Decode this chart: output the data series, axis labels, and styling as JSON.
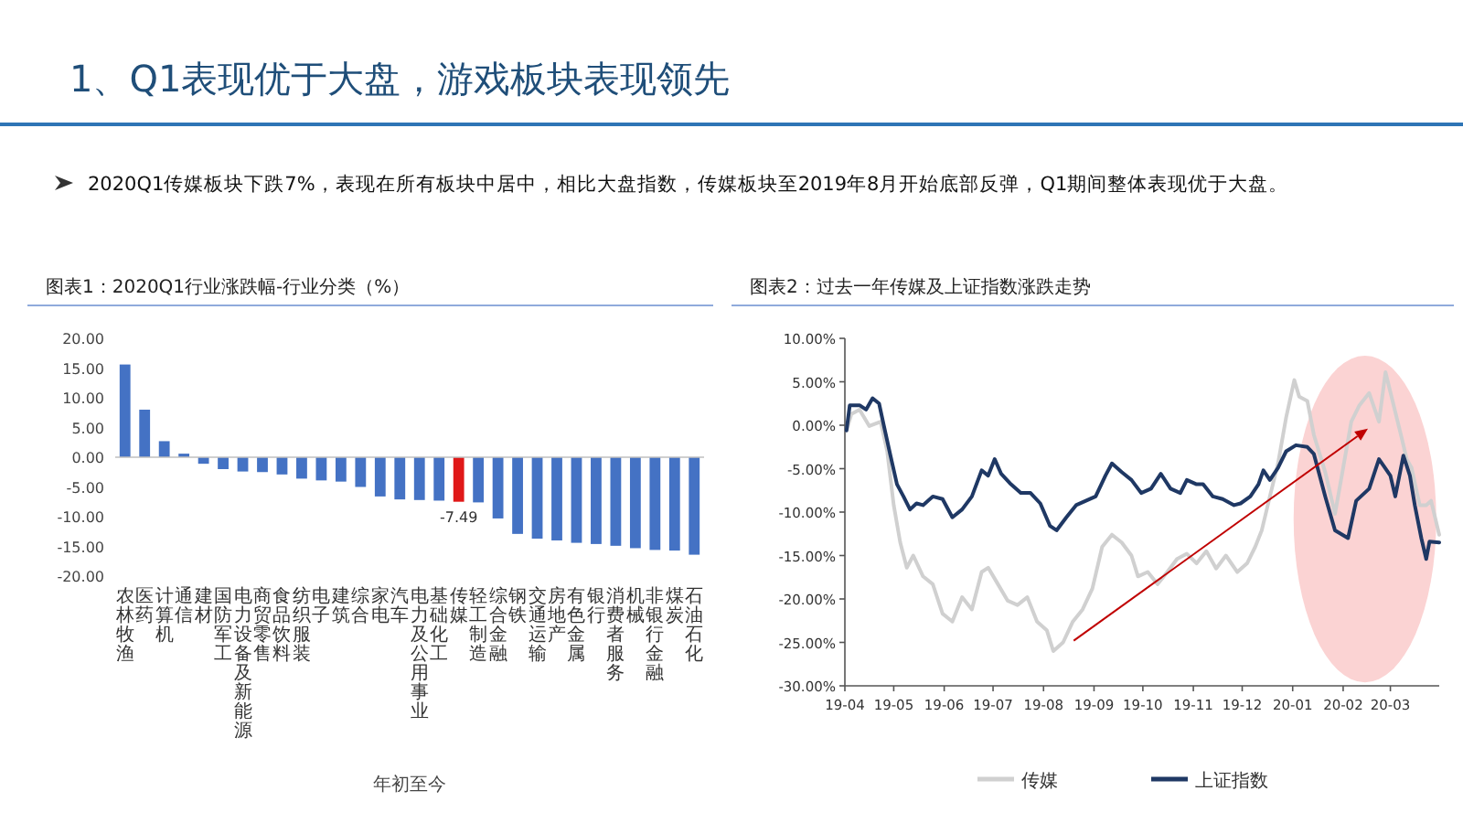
{
  "chart_data": [
    {
      "type": "other",
      "title": "1、Q1表现优于大盘，游戏板块表现领先",
      "annotations": [
        "2020Q1传媒板块下跌7%，表现在所有板块中居中，相比大盘指数，传媒板块至2019年8月开始底部反弹，Q1期间整体表现优于大盘。"
      ]
    },
    {
      "type": "bar",
      "title": "图表1：2020Q1行业涨跌幅-行业分类（%）",
      "xlabel": "年初至今",
      "categories": [
        "农林牧渔",
        "医药",
        "计算机",
        "通信",
        "建材",
        "国防军工",
        "电力设备及新能源",
        "商贸零售",
        "食品饮料",
        "纺织服装",
        "电子",
        "建筑",
        "综合",
        "家电",
        "汽车",
        "电力及公用事业",
        "基础化工",
        "传媒",
        "轻工制造",
        "综合金融",
        "钢铁",
        "交通运输",
        "房地产",
        "有色金属",
        "银行",
        "消费者服务",
        "机械",
        "非银行金融",
        "煤炭",
        "石油石化"
      ],
      "values": [
        15.6,
        8.0,
        2.7,
        0.6,
        -1.1,
        -2.0,
        -2.4,
        -2.5,
        -2.9,
        -3.6,
        -3.9,
        -4.1,
        -5.0,
        -6.6,
        -7.1,
        -7.2,
        -7.3,
        -7.49,
        -7.6,
        -10.3,
        -12.9,
        -13.7,
        -14.0,
        -14.4,
        -14.6,
        -14.9,
        -15.3,
        -15.6,
        -15.7,
        -16.4
      ],
      "colors": [
        "#4472c4",
        "#4472c4",
        "#4472c4",
        "#4472c4",
        "#4472c4",
        "#4472c4",
        "#4472c4",
        "#4472c4",
        "#4472c4",
        "#4472c4",
        "#4472c4",
        "#4472c4",
        "#4472c4",
        "#4472c4",
        "#4472c4",
        "#4472c4",
        "#4472c4",
        "#e01818",
        "#4472c4",
        "#4472c4",
        "#4472c4",
        "#4472c4",
        "#4472c4",
        "#4472c4",
        "#4472c4",
        "#4472c4",
        "#4472c4",
        "#4472c4",
        "#4472c4",
        "#4472c4"
      ],
      "value_labels": [
        null,
        null,
        null,
        null,
        null,
        null,
        null,
        null,
        null,
        null,
        null,
        null,
        null,
        null,
        null,
        null,
        null,
        "-7.49",
        null,
        null,
        null,
        null,
        null,
        null,
        null,
        null,
        null,
        null,
        null,
        null
      ],
      "ylim": [
        -20,
        20
      ],
      "yticks": [
        {
          "value": -20,
          "label": "-20.00"
        },
        {
          "value": -15,
          "label": "-15.00"
        },
        {
          "value": -10,
          "label": "-10.00"
        },
        {
          "value": -5,
          "label": "-5.00"
        },
        {
          "value": 0,
          "label": "0.00"
        },
        {
          "value": 5,
          "label": "5.00"
        },
        {
          "value": 10,
          "label": "10.00"
        },
        {
          "value": 15,
          "label": "15.00"
        },
        {
          "value": 20,
          "label": "20.00"
        }
      ]
    },
    {
      "type": "line",
      "title": "图表2：过去一年传媒及上证指数涨跌走势",
      "legend": "bottom",
      "xlim": [
        "2019-04-01",
        "2020-03-31"
      ],
      "xticks": [
        {
          "value": "2019-04-01",
          "label": "19-04"
        },
        {
          "value": "2019-05-01",
          "label": "19-05"
        },
        {
          "value": "2019-06-01",
          "label": "19-06"
        },
        {
          "value": "2019-07-01",
          "label": "19-07"
        },
        {
          "value": "2019-08-01",
          "label": "19-08"
        },
        {
          "value": "2019-09-01",
          "label": "19-09"
        },
        {
          "value": "2019-10-01",
          "label": "19-10"
        },
        {
          "value": "2019-11-01",
          "label": "19-11"
        },
        {
          "value": "2019-12-01",
          "label": "19-12"
        },
        {
          "value": "2020-01-01",
          "label": "20-01"
        },
        {
          "value": "2020-02-01",
          "label": "20-02"
        },
        {
          "value": "2020-03-01",
          "label": "20-03"
        }
      ],
      "ylim": [
        -30,
        10
      ],
      "yticks": [
        {
          "value": -30,
          "label": "-30.00%"
        },
        {
          "value": -25,
          "label": "-25.00%"
        },
        {
          "value": -20,
          "label": "-20.00%"
        },
        {
          "value": -15,
          "label": "-15.00%"
        },
        {
          "value": -10,
          "label": "-10.00%"
        },
        {
          "value": -5,
          "label": "-5.00%"
        },
        {
          "value": 0,
          "label": "0.00%"
        },
        {
          "value": 5,
          "label": "5.00%"
        },
        {
          "value": 10,
          "label": "10.00%"
        }
      ],
      "series": [
        {
          "name": "传媒",
          "color": "#d0d0d0",
          "x": [
            "2019-04-02",
            "2019-04-05",
            "2019-04-10",
            "2019-04-16",
            "2019-04-23",
            "2019-04-27",
            "2019-05-01",
            "2019-05-05",
            "2019-05-09",
            "2019-05-13",
            "2019-05-19",
            "2019-05-25",
            "2019-05-31",
            "2019-06-06",
            "2019-06-12",
            "2019-06-18",
            "2019-06-24",
            "2019-06-28",
            "2019-07-04",
            "2019-07-10",
            "2019-07-16",
            "2019-07-22",
            "2019-07-28",
            "2019-08-03",
            "2019-08-07",
            "2019-08-13",
            "2019-08-19",
            "2019-08-25",
            "2019-08-31",
            "2019-09-06",
            "2019-09-12",
            "2019-09-18",
            "2019-09-24",
            "2019-09-28",
            "2019-10-04",
            "2019-10-10",
            "2019-10-16",
            "2019-10-22",
            "2019-10-28",
            "2019-11-03",
            "2019-11-09",
            "2019-11-15",
            "2019-11-21",
            "2019-11-28",
            "2019-12-04",
            "2019-12-09",
            "2019-12-13",
            "2019-12-18",
            "2019-12-23",
            "2019-12-28",
            "2020-01-02",
            "2020-01-05",
            "2020-01-10",
            "2020-01-14",
            "2020-01-21",
            "2020-01-27",
            "2020-02-01",
            "2020-02-06",
            "2020-02-11",
            "2020-02-17",
            "2020-02-23",
            "2020-02-27",
            "2020-03-03",
            "2020-03-08",
            "2020-03-11",
            "2020-03-14",
            "2020-03-19",
            "2020-03-23",
            "2020-03-26",
            "2020-03-31"
          ],
          "values": [
            -0.6,
            1.3,
            1.8,
            -0.1,
            0.4,
            -3.0,
            -9.2,
            -13.5,
            -16.4,
            -15.0,
            -17.4,
            -18.3,
            -21.7,
            -22.6,
            -19.8,
            -21.2,
            -16.9,
            -16.4,
            -18.3,
            -20.2,
            -20.7,
            -19.8,
            -22.6,
            -23.6,
            -26.0,
            -25.0,
            -22.6,
            -21.2,
            -18.8,
            -14.0,
            -12.6,
            -13.5,
            -15.0,
            -17.4,
            -16.9,
            -18.3,
            -16.9,
            -15.4,
            -14.8,
            -15.9,
            -14.5,
            -16.5,
            -15.0,
            -16.9,
            -15.9,
            -14.0,
            -12.1,
            -8.2,
            -4.4,
            0.9,
            5.2,
            3.3,
            2.8,
            -1.1,
            -5.4,
            -10.2,
            -4.9,
            0.4,
            2.3,
            3.7,
            0.4,
            6.1,
            2.3,
            -1.5,
            -3.9,
            -4.9,
            -9.2,
            -9.2,
            -8.7,
            -12.6
          ]
        },
        {
          "name": "上证指数",
          "color": "#1f3864",
          "x": [
            "2019-04-02",
            "2019-04-04",
            "2019-04-10",
            "2019-04-14",
            "2019-04-18",
            "2019-04-22",
            "2019-04-25",
            "2019-04-29",
            "2019-05-03",
            "2019-05-07",
            "2019-05-11",
            "2019-05-15",
            "2019-05-19",
            "2019-05-25",
            "2019-05-31",
            "2019-06-06",
            "2019-06-12",
            "2019-06-18",
            "2019-06-24",
            "2019-06-28",
            "2019-07-02",
            "2019-07-06",
            "2019-07-12",
            "2019-07-18",
            "2019-07-24",
            "2019-07-30",
            "2019-08-05",
            "2019-08-09",
            "2019-08-15",
            "2019-08-21",
            "2019-08-27",
            "2019-09-02",
            "2019-09-08",
            "2019-09-12",
            "2019-09-18",
            "2019-09-24",
            "2019-09-30",
            "2019-10-06",
            "2019-10-12",
            "2019-10-18",
            "2019-10-24",
            "2019-10-28",
            "2019-11-03",
            "2019-11-07",
            "2019-11-13",
            "2019-11-19",
            "2019-11-26",
            "2019-11-30",
            "2019-12-06",
            "2019-12-11",
            "2019-12-14",
            "2019-12-18",
            "2019-12-23",
            "2019-12-28",
            "2020-01-03",
            "2020-01-10",
            "2020-01-14",
            "2020-01-21",
            "2020-01-27",
            "2020-02-04",
            "2020-02-09",
            "2020-02-17",
            "2020-02-23",
            "2020-03-01",
            "2020-03-04",
            "2020-03-09",
            "2020-03-13",
            "2020-03-16",
            "2020-03-20",
            "2020-03-23",
            "2020-03-25",
            "2020-03-31"
          ],
          "values": [
            -0.6,
            2.3,
            2.3,
            1.8,
            3.1,
            2.5,
            -0.1,
            -3.5,
            -6.8,
            -8.2,
            -9.7,
            -9.0,
            -9.2,
            -8.2,
            -8.5,
            -10.6,
            -9.7,
            -8.2,
            -5.2,
            -5.8,
            -3.9,
            -5.6,
            -6.8,
            -7.8,
            -7.8,
            -9.0,
            -11.6,
            -12.1,
            -10.6,
            -9.2,
            -8.7,
            -8.2,
            -5.8,
            -4.4,
            -5.4,
            -6.3,
            -7.8,
            -7.3,
            -5.6,
            -7.3,
            -7.8,
            -6.3,
            -6.8,
            -6.8,
            -8.2,
            -8.5,
            -9.2,
            -9.0,
            -8.2,
            -6.8,
            -5.2,
            -6.3,
            -4.9,
            -3.0,
            -2.3,
            -2.5,
            -3.3,
            -8.2,
            -12.1,
            -13.0,
            -8.7,
            -7.3,
            -3.9,
            -5.8,
            -8.2,
            -3.5,
            -5.8,
            -9.2,
            -13.0,
            -15.4,
            -13.4,
            -13.5
          ]
        }
      ]
    }
  ]
}
